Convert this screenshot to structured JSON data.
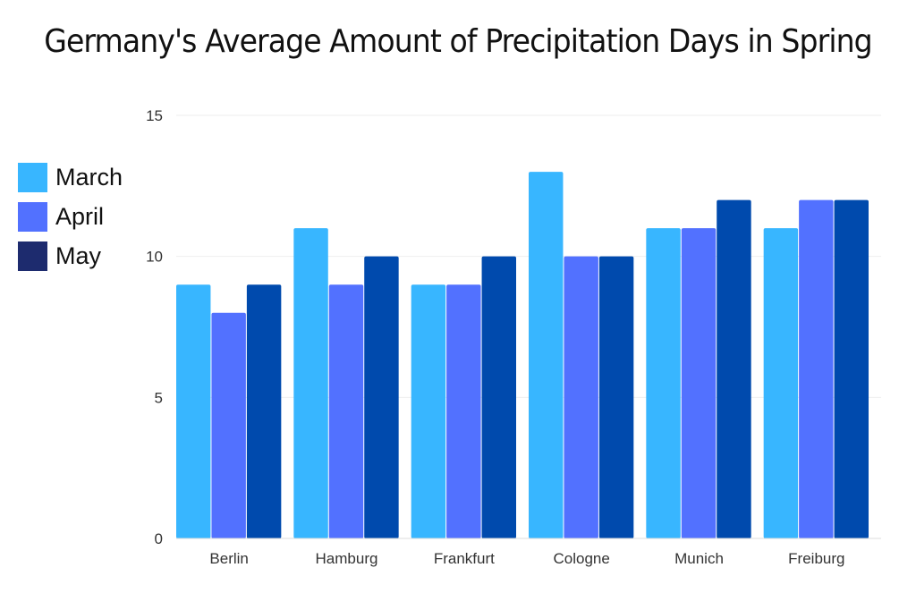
{
  "chart_data": {
    "type": "bar",
    "title": "Germany's Average Amount of Precipitation Days in Spring",
    "categories": [
      "Berlin",
      "Hamburg",
      "Frankfurt",
      "Cologne",
      "Munich",
      "Freiburg"
    ],
    "series": [
      {
        "name": "March",
        "values": [
          9,
          11,
          9,
          13,
          11,
          11
        ],
        "color": "#38b6ff",
        "legend_color": "#38b6ff"
      },
      {
        "name": "April",
        "values": [
          8,
          9,
          9,
          10,
          11,
          12
        ],
        "color": "#5271ff",
        "legend_color": "#5271ff"
      },
      {
        "name": "May",
        "values": [
          9,
          10,
          10,
          10,
          12,
          12
        ],
        "color": "#004aad",
        "legend_color": "#1d2b6e"
      }
    ],
    "yticks": [
      "0",
      "5",
      "10",
      "15"
    ],
    "ylim": [
      0,
      15
    ],
    "xlabel": "",
    "ylabel": "",
    "grid": true,
    "legend_position": "left"
  }
}
